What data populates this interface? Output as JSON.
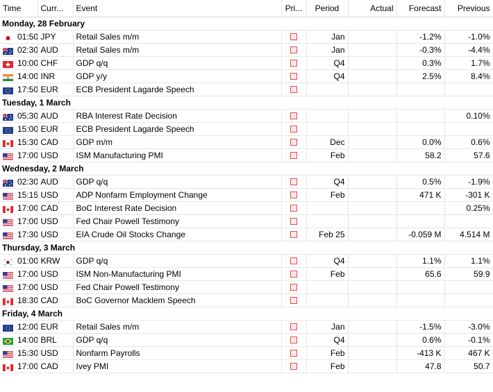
{
  "headers": {
    "time": "Time",
    "currency": "Curr...",
    "event": "Event",
    "priority": "Pri...",
    "period": "Period",
    "actual": "Actual",
    "forecast": "Forecast",
    "previous": "Previous"
  },
  "days": [
    {
      "label": "Monday, 28 February",
      "rows": [
        {
          "flag": "jp",
          "time": "01:50",
          "currency": "JPY",
          "event": "Retail Sales m/m",
          "period": "Jan",
          "actual": "",
          "forecast": "-1.2%",
          "previous": "-1.0%"
        },
        {
          "flag": "au",
          "time": "02:30",
          "currency": "AUD",
          "event": "Retail Sales m/m",
          "period": "Jan",
          "actual": "",
          "forecast": "-0.3%",
          "previous": "-4.4%"
        },
        {
          "flag": "ch",
          "time": "10:00",
          "currency": "CHF",
          "event": "GDP q/q",
          "period": "Q4",
          "actual": "",
          "forecast": "0.3%",
          "previous": "1.7%"
        },
        {
          "flag": "in",
          "time": "14:00",
          "currency": "INR",
          "event": "GDP y/y",
          "period": "Q4",
          "actual": "",
          "forecast": "2.5%",
          "previous": "8.4%"
        },
        {
          "flag": "eu",
          "time": "17:50",
          "currency": "EUR",
          "event": "ECB President Lagarde Speech",
          "period": "",
          "actual": "",
          "forecast": "",
          "previous": ""
        }
      ]
    },
    {
      "label": "Tuesday, 1 March",
      "rows": [
        {
          "flag": "au",
          "time": "05:30",
          "currency": "AUD",
          "event": "RBA Interest Rate Decision",
          "period": "",
          "actual": "",
          "forecast": "",
          "previous": "0.10%"
        },
        {
          "flag": "eu",
          "time": "15:00",
          "currency": "EUR",
          "event": "ECB President Lagarde Speech",
          "period": "",
          "actual": "",
          "forecast": "",
          "previous": ""
        },
        {
          "flag": "ca",
          "time": "15:30",
          "currency": "CAD",
          "event": "GDP m/m",
          "period": "Dec",
          "actual": "",
          "forecast": "0.0%",
          "previous": "0.6%"
        },
        {
          "flag": "us",
          "time": "17:00",
          "currency": "USD",
          "event": "ISM Manufacturing PMI",
          "period": "Feb",
          "actual": "",
          "forecast": "58.2",
          "previous": "57.6"
        }
      ]
    },
    {
      "label": "Wednesday, 2 March",
      "rows": [
        {
          "flag": "au",
          "time": "02:30",
          "currency": "AUD",
          "event": "GDP q/q",
          "period": "Q4",
          "actual": "",
          "forecast": "0.5%",
          "previous": "-1.9%"
        },
        {
          "flag": "us",
          "time": "15:15",
          "currency": "USD",
          "event": "ADP Nonfarm Employment Change",
          "period": "Feb",
          "actual": "",
          "forecast": "471 K",
          "previous": "-301 K"
        },
        {
          "flag": "ca",
          "time": "17:00",
          "currency": "CAD",
          "event": "BoC Interest Rate Decision",
          "period": "",
          "actual": "",
          "forecast": "",
          "previous": "0.25%"
        },
        {
          "flag": "us",
          "time": "17:00",
          "currency": "USD",
          "event": "Fed Chair Powell Testimony",
          "period": "",
          "actual": "",
          "forecast": "",
          "previous": ""
        },
        {
          "flag": "us",
          "time": "17:30",
          "currency": "USD",
          "event": "EIA Crude Oil Stocks Change",
          "period": "Feb 25",
          "actual": "",
          "forecast": "-0.059 M",
          "previous": "4.514 M"
        }
      ]
    },
    {
      "label": "Thursday, 3 March",
      "rows": [
        {
          "flag": "kr",
          "time": "01:00",
          "currency": "KRW",
          "event": "GDP q/q",
          "period": "Q4",
          "actual": "",
          "forecast": "1.1%",
          "previous": "1.1%"
        },
        {
          "flag": "us",
          "time": "17:00",
          "currency": "USD",
          "event": "ISM Non-Manufacturing PMI",
          "period": "Feb",
          "actual": "",
          "forecast": "65.6",
          "previous": "59.9"
        },
        {
          "flag": "us",
          "time": "17:00",
          "currency": "USD",
          "event": "Fed Chair Powell Testimony",
          "period": "",
          "actual": "",
          "forecast": "",
          "previous": ""
        },
        {
          "flag": "ca",
          "time": "18:30",
          "currency": "CAD",
          "event": "BoC Governor Macklem Speech",
          "period": "",
          "actual": "",
          "forecast": "",
          "previous": ""
        }
      ]
    },
    {
      "label": "Friday, 4 March",
      "rows": [
        {
          "flag": "eu",
          "time": "12:00",
          "currency": "EUR",
          "event": "Retail Sales m/m",
          "period": "Jan",
          "actual": "",
          "forecast": "-1.5%",
          "previous": "-3.0%"
        },
        {
          "flag": "br",
          "time": "14:00",
          "currency": "BRL",
          "event": "GDP q/q",
          "period": "Q4",
          "actual": "",
          "forecast": "0.6%",
          "previous": "-0.1%"
        },
        {
          "flag": "us",
          "time": "15:30",
          "currency": "USD",
          "event": "Nonfarm Payrolls",
          "period": "Feb",
          "actual": "",
          "forecast": "-413 K",
          "previous": "467 K"
        },
        {
          "flag": "ca",
          "time": "17:00",
          "currency": "CAD",
          "event": "Ivey PMI",
          "period": "Feb",
          "actual": "",
          "forecast": "47.8",
          "previous": "50.7"
        }
      ]
    }
  ]
}
